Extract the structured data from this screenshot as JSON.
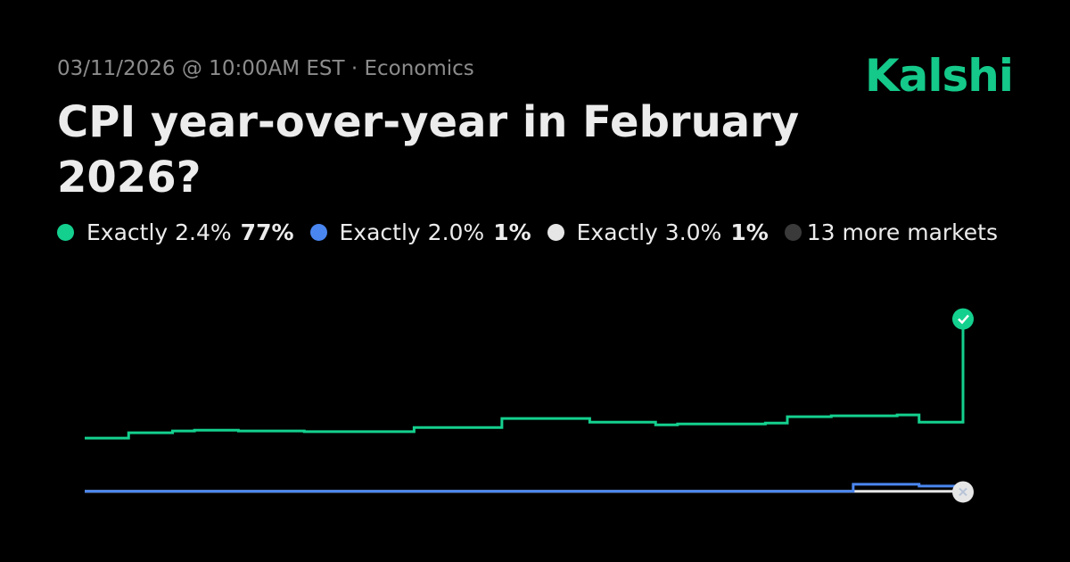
{
  "brand": "Kalshi",
  "chart_data": {
    "type": "line",
    "subtitle": "03/11/2026 @ 10:00AM EST · Economics",
    "title": "CPI year-over-year in February 2026?",
    "ylim": [
      0,
      80
    ],
    "step": true,
    "series": [
      {
        "name": "13 more markets",
        "color": "#3a3a3a",
        "values": [
          0.4,
          0.4,
          0.4,
          0.4,
          0.4,
          0.4,
          0.4,
          0.4,
          0.4,
          0.4,
          0.4,
          0.4,
          0.4,
          0.4,
          0.4,
          0.4,
          0.4,
          0.4,
          0.4,
          0.4,
          0.4,
          0.4,
          0.4,
          0.4,
          0.4,
          0.4,
          0.4,
          0.4,
          0.4,
          0.4,
          0.4,
          0.4,
          0.4,
          0.4,
          0.4,
          0.4,
          0.4,
          0.4,
          0.4,
          0.4,
          0.4
        ]
      },
      {
        "name": "Exactly 3.0%",
        "color": "#e6e6e6",
        "chance": {
          "value": 1,
          "label": "1%"
        },
        "values": [
          0.5,
          0.5,
          0.5,
          0.5,
          0.5,
          0.5,
          0.5,
          0.5,
          0.5,
          0.5,
          0.5,
          0.5,
          0.5,
          0.5,
          0.5,
          0.5,
          0.5,
          0.5,
          0.5,
          0.5,
          0.5,
          0.5,
          0.5,
          0.5,
          0.5,
          0.5,
          0.5,
          0.5,
          0.5,
          0.5,
          0.5,
          0.5,
          0.5,
          0.5,
          0.5,
          0.5,
          0.5,
          0.5,
          0.5,
          0.5,
          1
        ]
      },
      {
        "name": "Exactly 2.0%",
        "color": "#4a86f0",
        "chance": {
          "value": 1,
          "label": "1%"
        },
        "values": [
          0.5,
          0.5,
          0.5,
          0.5,
          0.5,
          0.5,
          0.5,
          0.5,
          0.5,
          0.5,
          0.5,
          0.5,
          0.5,
          0.5,
          0.5,
          0.5,
          0.5,
          0.5,
          0.5,
          0.5,
          0.5,
          0.5,
          0.5,
          0.5,
          0.5,
          0.5,
          0.5,
          0.5,
          0.5,
          0.5,
          0.5,
          0.5,
          0.5,
          0.5,
          0.5,
          3.6,
          3.6,
          3.6,
          2.8,
          2.8,
          1
        ]
      },
      {
        "name": "Exactly 2.4%",
        "color": "#14d08e",
        "chance": {
          "value": 77,
          "label": "77%"
        },
        "values": [
          24.1,
          24.1,
          26.5,
          26.5,
          27.3,
          27.6,
          27.6,
          27.3,
          27.3,
          27.3,
          27,
          27,
          27,
          27,
          27,
          28.8,
          28.8,
          28.8,
          28.8,
          32.8,
          32.8,
          32.8,
          32.8,
          31.2,
          31.2,
          31.2,
          30,
          30.4,
          30.4,
          30.4,
          30.4,
          30.8,
          33.6,
          33.6,
          34,
          34,
          34,
          34.4,
          31.2,
          31.2,
          77
        ]
      }
    ],
    "legend_order": [
      3,
      2,
      1,
      0
    ]
  }
}
